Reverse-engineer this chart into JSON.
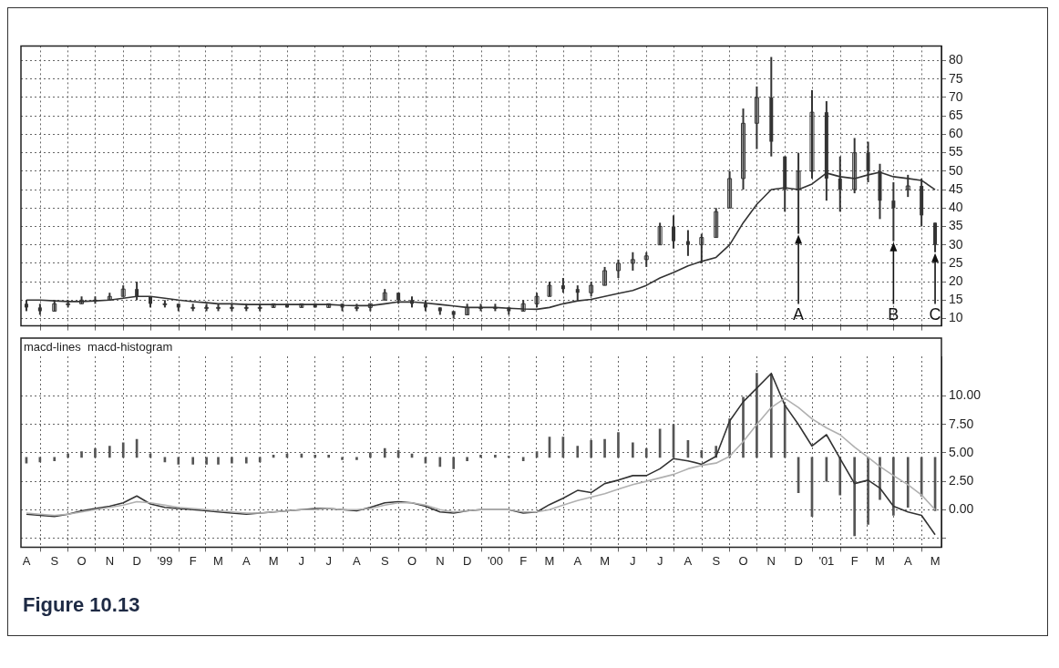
{
  "chart_data": [
    {
      "type": "candlestick",
      "x": [
        "1998-08-01",
        "1998-08-16",
        "1998-09-01",
        "1998-09-16",
        "1998-10-01",
        "1998-10-16",
        "1998-11-01",
        "1998-11-16",
        "1998-12-01",
        "1998-12-16",
        "1999-01-01",
        "1999-01-16",
        "1999-02-01",
        "1999-02-16",
        "1999-03-01",
        "1999-03-16",
        "1999-04-01",
        "1999-04-16",
        "1999-05-01",
        "1999-05-16",
        "1999-06-01",
        "1999-06-16",
        "1999-07-01",
        "1999-07-16",
        "1999-08-01",
        "1999-08-16",
        "1999-09-01",
        "1999-09-16",
        "1999-10-01",
        "1999-10-16",
        "1999-11-01",
        "1999-11-16",
        "1999-12-01",
        "1999-12-16",
        "2000-01-01",
        "2000-01-16",
        "2000-02-01",
        "2000-02-16",
        "2000-03-01",
        "2000-03-16",
        "2000-04-01",
        "2000-04-16",
        "2000-05-01",
        "2000-05-16",
        "2000-06-01",
        "2000-06-16",
        "2000-07-01",
        "2000-07-16",
        "2000-08-01",
        "2000-08-16",
        "2000-09-01",
        "2000-09-16",
        "2000-10-01",
        "2000-10-16",
        "2000-11-01",
        "2000-11-16",
        "2000-12-01",
        "2000-12-16",
        "2001-01-01",
        "2001-01-16",
        "2001-02-01",
        "2001-02-16",
        "2001-03-01",
        "2001-03-16",
        "2001-04-01",
        "2001-04-16",
        "2001-05-01"
      ],
      "series": [
        {
          "color": "#333333",
          "ohlc": [
            [
              14,
              15,
              12,
              13
            ],
            [
              13,
              14,
              11,
              12
            ],
            [
              12,
              15,
              12,
              14
            ],
            [
              14,
              15,
              13,
              14
            ],
            [
              14,
              16,
              14,
              15
            ],
            [
              15,
              16,
              14,
              15
            ],
            [
              15,
              17,
              15,
              16
            ],
            [
              16,
              19,
              16,
              18
            ],
            [
              18,
              20,
              15,
              16
            ],
            [
              16,
              16,
              13,
              14
            ],
            [
              14,
              15,
              13,
              14
            ],
            [
              14,
              14,
              12,
              13
            ],
            [
              13,
              14,
              12,
              13
            ],
            [
              13,
              14,
              12,
              13
            ],
            [
              13,
              14,
              12,
              13
            ],
            [
              13,
              14,
              12,
              13
            ],
            [
              13,
              14,
              12,
              13
            ],
            [
              13,
              14,
              12,
              13
            ],
            [
              13,
              14,
              13,
              14
            ],
            [
              14,
              14,
              13,
              13
            ],
            [
              13,
              14,
              13,
              14
            ],
            [
              14,
              14,
              13,
              13
            ],
            [
              13,
              14,
              13,
              14
            ],
            [
              14,
              14,
              12,
              13
            ],
            [
              13,
              14,
              12,
              13
            ],
            [
              13,
              14,
              12,
              14
            ],
            [
              15,
              18,
              15,
              17
            ],
            [
              17,
              17,
              14,
              15
            ],
            [
              15,
              16,
              13,
              14
            ],
            [
              14,
              15,
              12,
              13
            ],
            [
              13,
              13,
              11,
              12
            ],
            [
              12,
              12,
              10,
              11
            ],
            [
              11,
              14,
              11,
              13
            ],
            [
              13,
              14,
              12,
              13
            ],
            [
              13,
              14,
              12,
              13
            ],
            [
              13,
              13,
              11,
              12
            ],
            [
              12,
              15,
              12,
              14
            ],
            [
              14,
              17,
              13,
              16
            ],
            [
              16,
              20,
              16,
              19
            ],
            [
              19,
              21,
              17,
              18
            ],
            [
              18,
              19,
              15,
              17
            ],
            [
              17,
              20,
              16,
              19
            ],
            [
              19,
              24,
              19,
              23
            ],
            [
              23,
              26,
              21,
              25
            ],
            [
              25,
              28,
              23,
              26
            ],
            [
              26,
              28,
              24,
              27
            ],
            [
              30,
              36,
              30,
              35
            ],
            [
              35,
              38,
              29,
              31
            ],
            [
              31,
              34,
              27,
              30
            ],
            [
              30,
              33,
              25,
              32
            ],
            [
              32,
              40,
              32,
              39
            ],
            [
              40,
              50,
              40,
              48
            ],
            [
              48,
              67,
              45,
              63
            ],
            [
              63,
              73,
              56,
              70
            ],
            [
              70,
              81,
              54,
              58
            ],
            [
              54,
              54,
              39,
              45
            ],
            [
              45,
              55,
              33,
              50
            ],
            [
              50,
              72,
              48,
              66
            ],
            [
              66,
              69,
              42,
              48
            ],
            [
              48,
              54,
              39,
              45
            ],
            [
              45,
              59,
              44,
              55
            ],
            [
              55,
              58,
              47,
              50
            ],
            [
              50,
              52,
              37,
              42
            ],
            [
              42,
              47,
              31,
              40
            ],
            [
              45,
              49,
              43,
              46
            ],
            [
              46,
              48,
              35,
              38
            ],
            [
              36,
              36,
              28,
              30
            ]
          ]
        },
        {
          "type": "line",
          "color": "#333333",
          "values": [
            15,
            15,
            14.8,
            14.6,
            14.6,
            14.8,
            15,
            15.5,
            16,
            16,
            15.5,
            15,
            14.6,
            14.3,
            14,
            14,
            13.8,
            13.8,
            13.8,
            13.8,
            13.8,
            13.8,
            13.8,
            13.6,
            13.5,
            13.5,
            14,
            14.5,
            14.5,
            14.2,
            13.8,
            13.4,
            13,
            13,
            13,
            12.8,
            12.6,
            12.5,
            13,
            14,
            14.8,
            15.2,
            16,
            16.8,
            17.6,
            19,
            21,
            22.5,
            24.3,
            25.5,
            26.6,
            30,
            36,
            41,
            45,
            45.5,
            45,
            46.5,
            49.5,
            48.5,
            48,
            49,
            49.7,
            48.5,
            48,
            47.5,
            45
          ]
        }
      ],
      "xlim": [
        "1998-07-26",
        "2001-05-08"
      ],
      "xticks": [
        {
          "value": "1998-08-01",
          "label": null
        },
        {
          "value": "1998-09-01",
          "label": null
        },
        {
          "value": "1998-10-01",
          "label": null
        },
        {
          "value": "1998-11-01",
          "label": null
        },
        {
          "value": "1998-12-01",
          "label": null
        },
        {
          "value": "1999-01-01",
          "label": null
        },
        {
          "value": "1999-02-01",
          "label": null
        },
        {
          "value": "1999-03-01",
          "label": null
        },
        {
          "value": "1999-04-01",
          "label": null
        },
        {
          "value": "1999-05-01",
          "label": null
        },
        {
          "value": "1999-06-01",
          "label": null
        },
        {
          "value": "1999-07-01",
          "label": null
        },
        {
          "value": "1999-08-01",
          "label": null
        },
        {
          "value": "1999-09-01",
          "label": null
        },
        {
          "value": "1999-10-01",
          "label": null
        },
        {
          "value": "1999-11-01",
          "label": null
        },
        {
          "value": "1999-12-01",
          "label": null
        },
        {
          "value": "2000-01-01",
          "label": null
        },
        {
          "value": "2000-02-01",
          "label": null
        },
        {
          "value": "2000-03-01",
          "label": null
        },
        {
          "value": "2000-04-01",
          "label": null
        },
        {
          "value": "2000-05-01",
          "label": null
        },
        {
          "value": "2000-06-01",
          "label": null
        },
        {
          "value": "2000-07-01",
          "label": null
        },
        {
          "value": "2000-08-01",
          "label": null
        },
        {
          "value": "2000-09-01",
          "label": null
        },
        {
          "value": "2000-10-01",
          "label": null
        },
        {
          "value": "2000-11-01",
          "label": null
        },
        {
          "value": "2000-12-01",
          "label": null
        },
        {
          "value": "2001-01-01",
          "label": null
        },
        {
          "value": "2001-02-01",
          "label": null
        },
        {
          "value": "2001-03-01",
          "label": null
        },
        {
          "value": "2001-04-01",
          "label": null
        },
        {
          "value": "2001-05-01",
          "label": null
        }
      ],
      "ylim": [
        8,
        84
      ],
      "yticks": [
        10,
        15,
        20,
        25,
        30,
        35,
        40,
        45,
        50,
        55,
        60,
        65,
        70,
        75,
        80
      ],
      "tick_labels": "y",
      "grid": true,
      "legend": false,
      "annotations": [
        {
          "text": "A",
          "x": "2000-12-01",
          "y": 33
        },
        {
          "text": "B",
          "x": "2001-03-16",
          "y": 31
        },
        {
          "text": "C",
          "x": "2001-05-01",
          "y": 28
        }
      ]
    },
    {
      "type": "line",
      "title": "macd-lines  macd-histogram",
      "x": [
        "1998-08-01",
        "1998-08-16",
        "1998-09-01",
        "1998-09-16",
        "1998-10-01",
        "1998-10-16",
        "1998-11-01",
        "1998-11-16",
        "1998-12-01",
        "1998-12-16",
        "1999-01-01",
        "1999-01-16",
        "1999-02-01",
        "1999-02-16",
        "1999-03-01",
        "1999-03-16",
        "1999-04-01",
        "1999-04-16",
        "1999-05-01",
        "1999-05-16",
        "1999-06-01",
        "1999-06-16",
        "1999-07-01",
        "1999-07-16",
        "1999-08-01",
        "1999-08-16",
        "1999-09-01",
        "1999-09-16",
        "1999-10-01",
        "1999-10-16",
        "1999-11-01",
        "1999-11-16",
        "1999-12-01",
        "1999-12-16",
        "2000-01-01",
        "2000-01-16",
        "2000-02-01",
        "2000-02-16",
        "2000-03-01",
        "2000-03-16",
        "2000-04-01",
        "2000-04-16",
        "2000-05-01",
        "2000-05-16",
        "2000-06-01",
        "2000-06-16",
        "2000-07-01",
        "2000-07-16",
        "2000-08-01",
        "2000-08-16",
        "2000-09-01",
        "2000-09-16",
        "2000-10-01",
        "2000-10-16",
        "2000-11-01",
        "2000-11-16",
        "2000-12-01",
        "2000-12-16",
        "2001-01-01",
        "2001-01-16",
        "2001-02-01",
        "2001-02-16",
        "2001-03-01",
        "2001-03-16",
        "2001-04-01",
        "2001-04-16",
        "2001-05-01"
      ],
      "series": [
        {
          "type": "bar",
          "color": "#555555",
          "base": [
            4.6,
            4.6,
            4.6,
            4.6,
            4.6,
            4.6,
            4.6,
            4.6,
            4.6,
            4.6,
            4.6,
            4.6,
            4.6,
            4.6,
            4.6,
            4.6,
            4.6,
            4.6,
            4.6,
            4.6,
            4.6,
            4.6,
            4.6,
            4.6,
            4.6,
            4.6,
            4.6,
            4.6,
            4.6,
            4.6,
            4.6,
            4.6,
            4.6,
            4.6,
            4.6,
            4.6,
            4.6,
            4.6,
            4.6,
            4.6,
            4.6,
            4.6,
            4.6,
            4.6,
            4.6,
            4.6,
            4.6,
            4.6,
            4.6,
            4.6,
            4.6,
            4.6,
            4.6,
            4.6,
            4.6,
            4.6,
            4.6,
            4.6,
            4.6,
            4.6,
            4.6,
            4.6,
            4.6,
            4.6,
            4.6,
            4.6,
            4.6
          ],
          "values": [
            -0.5,
            -0.4,
            -0.3,
            0.3,
            0.5,
            0.8,
            1.0,
            1.3,
            1.6,
            0.3,
            -0.4,
            -0.6,
            -0.6,
            -0.6,
            -0.6,
            -0.5,
            -0.5,
            -0.4,
            0.2,
            0.3,
            0.3,
            0.2,
            0.2,
            -0.2,
            -0.2,
            0.4,
            0.8,
            0.6,
            0.3,
            -0.5,
            -0.8,
            -1.0,
            -0.3,
            0.2,
            0.2,
            0.1,
            -0.3,
            0.5,
            1.8,
            1.8,
            1.0,
            1.5,
            1.6,
            2.2,
            1.3,
            0.8,
            2.5,
            2.9,
            1.5,
            0.6,
            1.0,
            3.4,
            5.3,
            7.4,
            7.3,
            4.6,
            -3.1,
            -5.2,
            -2.1,
            -3.3,
            -6.9,
            -5.9,
            -3.7,
            -5.1,
            -4.4,
            -3.4,
            -4.7
          ]
        },
        {
          "type": "line",
          "color": "#b0b0b0",
          "values": [
            -0.3,
            -0.4,
            -0.5,
            -0.4,
            -0.2,
            0,
            0.2,
            0.4,
            0.7,
            0.6,
            0.4,
            0.2,
            0.1,
            0,
            -0.1,
            -0.2,
            -0.3,
            -0.3,
            -0.2,
            -0.1,
            0,
            0,
            0.1,
            0,
            0,
            0.1,
            0.4,
            0.6,
            0.6,
            0.4,
            0,
            -0.2,
            -0.1,
            0,
            0,
            0,
            -0.2,
            -0.2,
            0,
            0.4,
            0.8,
            1.1,
            1.4,
            1.8,
            2.2,
            2.5,
            2.8,
            3.1,
            3.6,
            3.9,
            4.1,
            4.7,
            6.0,
            7.5,
            9.0,
            9.8,
            9.0,
            8.0,
            7.2,
            6.6,
            5.5,
            4.6,
            3.8,
            3.0,
            2.2,
            1.3,
            0
          ]
        },
        {
          "color": "#333333",
          "values": [
            -0.4,
            -0.5,
            -0.6,
            -0.4,
            -0.1,
            0.1,
            0.3,
            0.6,
            1.2,
            0.5,
            0.2,
            0.1,
            0,
            -0.1,
            -0.2,
            -0.3,
            -0.4,
            -0.3,
            -0.2,
            -0.1,
            0,
            0.1,
            0.1,
            0,
            -0.1,
            0.2,
            0.6,
            0.7,
            0.6,
            0.3,
            -0.2,
            -0.3,
            -0.1,
            0,
            0,
            0,
            -0.3,
            -0.2,
            0.45,
            1.0,
            1.7,
            1.5,
            2.3,
            2.6,
            3.0,
            3.0,
            3.6,
            4.5,
            4.3,
            4.0,
            4.7,
            7.8,
            9.5,
            10.7,
            12.0,
            9.2,
            7.5,
            5.6,
            6.6,
            4.5,
            2.3,
            2.6,
            1.9,
            0.3,
            -0.2,
            -0.5,
            -2.2
          ]
        }
      ],
      "xlim": [
        "1998-07-26",
        "2001-05-08"
      ],
      "xticks": [
        {
          "value": "1998-08-01",
          "label": "A"
        },
        {
          "value": "1998-09-01",
          "label": "S"
        },
        {
          "value": "1998-10-01",
          "label": "O"
        },
        {
          "value": "1998-11-01",
          "label": "N"
        },
        {
          "value": "1998-12-01",
          "label": "D"
        },
        {
          "value": "1999-01-01",
          "label": "'99"
        },
        {
          "value": "1999-02-01",
          "label": "F"
        },
        {
          "value": "1999-03-01",
          "label": "M"
        },
        {
          "value": "1999-04-01",
          "label": "A"
        },
        {
          "value": "1999-05-01",
          "label": "M"
        },
        {
          "value": "1999-06-01",
          "label": "J"
        },
        {
          "value": "1999-07-01",
          "label": "J"
        },
        {
          "value": "1999-08-01",
          "label": "A"
        },
        {
          "value": "1999-09-01",
          "label": "S"
        },
        {
          "value": "1999-10-01",
          "label": "O"
        },
        {
          "value": "1999-11-01",
          "label": "N"
        },
        {
          "value": "1999-12-01",
          "label": "D"
        },
        {
          "value": "2000-01-01",
          "label": "'00"
        },
        {
          "value": "2000-02-01",
          "label": "F"
        },
        {
          "value": "2000-03-01",
          "label": "M"
        },
        {
          "value": "2000-04-01",
          "label": "A"
        },
        {
          "value": "2000-05-01",
          "label": "M"
        },
        {
          "value": "2000-06-01",
          "label": "J"
        },
        {
          "value": "2000-07-01",
          "label": "J"
        },
        {
          "value": "2000-08-01",
          "label": "A"
        },
        {
          "value": "2000-09-01",
          "label": "S"
        },
        {
          "value": "2000-10-01",
          "label": "O"
        },
        {
          "value": "2000-11-01",
          "label": "N"
        },
        {
          "value": "2000-12-01",
          "label": "D"
        },
        {
          "value": "2001-01-01",
          "label": "'01"
        },
        {
          "value": "2001-02-01",
          "label": "F"
        },
        {
          "value": "2001-03-01",
          "label": "M"
        },
        {
          "value": "2001-04-01",
          "label": "A"
        },
        {
          "value": "2001-05-01",
          "label": "M"
        }
      ],
      "ylim": [
        -3.3,
        13.5
      ],
      "yticks": [
        {
          "value": -2.5,
          "label": null
        },
        {
          "value": 0,
          "label": "0.00"
        },
        {
          "value": 2.5,
          "label": "2.50"
        },
        {
          "value": 5,
          "label": "5.00"
        },
        {
          "value": 7.5,
          "label": "7.50"
        },
        {
          "value": 10,
          "label": "10.00"
        }
      ],
      "grid": true,
      "legend": false,
      "annotations": [
        "Figure 10.13"
      ]
    }
  ]
}
